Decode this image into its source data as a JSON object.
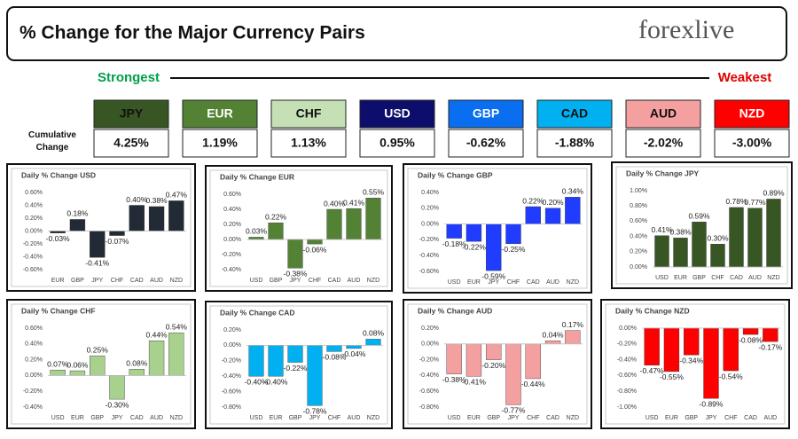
{
  "header": {
    "title": "% Change for the Major Currency Pairs",
    "logo": "forexlive"
  },
  "strength": {
    "strongest": "Strongest",
    "weakest": "Weakest",
    "row_label": "Cumulative Change",
    "tiles": [
      {
        "name": "JPY",
        "color": "#375623",
        "value": 4.25,
        "value_label": "4.25%"
      },
      {
        "name": "EUR",
        "color": "#548235",
        "value": 1.19,
        "value_label": "1.19%"
      },
      {
        "name": "CHF",
        "color": "#c5e0b4",
        "value": 1.13,
        "value_label": "1.13%"
      },
      {
        "name": "USD",
        "color": "#0d0d6b",
        "value": 0.95,
        "value_label": "0.95%"
      },
      {
        "name": "GBP",
        "color": "#0a6ef0",
        "value": -0.62,
        "value_label": "-0.62%"
      },
      {
        "name": "CAD",
        "color": "#00b0f0",
        "value": -1.88,
        "value_label": "-1.88%"
      },
      {
        "name": "AUD",
        "color": "#f4a0a0",
        "value": -2.02,
        "value_label": "-2.02%"
      },
      {
        "name": "NZD",
        "color": "#ff0000",
        "value": -3.0,
        "value_label": "-3.00%"
      }
    ]
  },
  "chart_data": [
    {
      "type": "bar",
      "title": "Daily % Change USD",
      "color": "#222a35",
      "categories": [
        "EUR",
        "GBP",
        "JPY",
        "CHF",
        "CAD",
        "AUD",
        "NZD"
      ],
      "values": [
        -0.03,
        0.18,
        -0.41,
        -0.07,
        0.4,
        0.38,
        0.47
      ],
      "value_labels": [
        "-0.03%",
        "0.18%",
        "-0.41%",
        "-0.07%",
        "0.40%",
        "0.38%",
        "0.47%"
      ],
      "ylim": [
        -0.6,
        0.6
      ],
      "yticks": [
        {
          "value": -0.6,
          "label": "-0.60%"
        },
        {
          "value": -0.4,
          "label": "-0.40%"
        },
        {
          "value": -0.2,
          "label": "-0.20%"
        },
        {
          "value": 0,
          "label": "0.00%"
        },
        {
          "value": 0.2,
          "label": "0.20%"
        },
        {
          "value": 0.4,
          "label": "0.40%"
        },
        {
          "value": 0.6,
          "label": "0.60%"
        }
      ]
    },
    {
      "type": "bar",
      "title": "Daily % Change EUR",
      "color": "#548235",
      "categories": [
        "USD",
        "GBP",
        "JPY",
        "CHF",
        "CAD",
        "AUD",
        "NZD"
      ],
      "values": [
        0.03,
        0.22,
        -0.38,
        -0.06,
        0.4,
        0.41,
        0.55
      ],
      "value_labels": [
        "0.03%",
        "0.22%",
        "-0.38%",
        "-0.06%",
        "0.40%",
        "0.41%",
        "0.55%"
      ],
      "ylim": [
        -0.4,
        0.6
      ],
      "yticks": [
        {
          "value": -0.4,
          "label": "-0.40%"
        },
        {
          "value": -0.2,
          "label": "-0.20%"
        },
        {
          "value": 0,
          "label": "0.00%"
        },
        {
          "value": 0.2,
          "label": "0.20%"
        },
        {
          "value": 0.4,
          "label": "0.40%"
        },
        {
          "value": 0.6,
          "label": "0.60%"
        }
      ]
    },
    {
      "type": "bar",
      "title": "Daily % Change GBP",
      "color": "#1f3cff",
      "categories": [
        "USD",
        "EUR",
        "JPY",
        "CHF",
        "CAD",
        "AUD",
        "NZD"
      ],
      "values": [
        -0.18,
        -0.22,
        -0.59,
        -0.25,
        0.22,
        0.2,
        0.34
      ],
      "value_labels": [
        "-0.18%",
        "-0.22%",
        "-0.59%",
        "-0.25%",
        "0.22%",
        "0.20%",
        "0.34%"
      ],
      "ylim": [
        -0.6,
        0.4
      ],
      "yticks": [
        {
          "value": -0.6,
          "label": "-0.60%"
        },
        {
          "value": -0.4,
          "label": "-0.40%"
        },
        {
          "value": -0.2,
          "label": "-0.20%"
        },
        {
          "value": 0,
          "label": "0.00%"
        },
        {
          "value": 0.2,
          "label": "0.20%"
        },
        {
          "value": 0.4,
          "label": "0.40%"
        }
      ]
    },
    {
      "type": "bar",
      "title": "Daily % Change JPY",
      "color": "#375623",
      "categories": [
        "USD",
        "EUR",
        "GBP",
        "CHF",
        "CAD",
        "AUD",
        "NZD"
      ],
      "values": [
        0.41,
        0.38,
        0.59,
        0.3,
        0.78,
        0.77,
        0.89
      ],
      "value_labels": [
        "0.41%",
        "0.38%",
        "0.59%",
        "0.30%",
        "0.78%",
        "0.77%",
        "0.89%"
      ],
      "ylim": [
        0,
        1
      ],
      "yticks": [
        {
          "value": 0,
          "label": "0.00%"
        },
        {
          "value": 0.2,
          "label": "0.20%"
        },
        {
          "value": 0.4,
          "label": "0.40%"
        },
        {
          "value": 0.6,
          "label": "0.60%"
        },
        {
          "value": 0.8,
          "label": "0.80%"
        },
        {
          "value": 1,
          "label": "1.00%"
        }
      ]
    },
    {
      "type": "bar",
      "title": "Daily % Change CHF",
      "color": "#a9d18e",
      "categories": [
        "USD",
        "EUR",
        "GBP",
        "JPY",
        "CAD",
        "AUD",
        "NZD"
      ],
      "values": [
        0.07,
        0.06,
        0.25,
        -0.3,
        0.08,
        0.44,
        0.54
      ],
      "value_labels": [
        "0.07%",
        "0.06%",
        "0.25%",
        "-0.30%",
        "0.08%",
        "0.44%",
        "0.54%"
      ],
      "ylim": [
        -0.4,
        0.6
      ],
      "yticks": [
        {
          "value": -0.4,
          "label": "-0.40%"
        },
        {
          "value": -0.2,
          "label": "-0.20%"
        },
        {
          "value": 0,
          "label": "0.00%"
        },
        {
          "value": 0.2,
          "label": "0.20%"
        },
        {
          "value": 0.4,
          "label": "0.40%"
        },
        {
          "value": 0.6,
          "label": "0.60%"
        }
      ]
    },
    {
      "type": "bar",
      "title": "Daily % Change CAD",
      "color": "#00b0f0",
      "categories": [
        "USD",
        "EUR",
        "GBP",
        "JPY",
        "CHF",
        "AUD",
        "NZD"
      ],
      "values": [
        -0.4,
        -0.4,
        -0.22,
        -0.78,
        -0.08,
        -0.04,
        0.08
      ],
      "value_labels": [
        "-0.40%",
        "-0.40%",
        "-0.22%",
        "-0.78%",
        "-0.08%",
        "-0.04%",
        "0.08%"
      ],
      "ylim": [
        -0.8,
        0.2
      ],
      "yticks": [
        {
          "value": -0.8,
          "label": "-0.80%"
        },
        {
          "value": -0.6,
          "label": "-0.60%"
        },
        {
          "value": -0.4,
          "label": "-0.40%"
        },
        {
          "value": -0.2,
          "label": "-0.20%"
        },
        {
          "value": 0,
          "label": "0.00%"
        },
        {
          "value": 0.2,
          "label": "0.20%"
        }
      ]
    },
    {
      "type": "bar",
      "title": "Daily % Change AUD",
      "color": "#f4a0a0",
      "categories": [
        "USD",
        "EUR",
        "GBP",
        "JPY",
        "CHF",
        "CAD",
        "NZD"
      ],
      "values": [
        -0.38,
        -0.41,
        -0.2,
        -0.77,
        -0.44,
        0.04,
        0.17
      ],
      "value_labels": [
        "-0.38%",
        "-0.41%",
        "-0.20%",
        "-0.77%",
        "-0.44%",
        "0.04%",
        "0.17%"
      ],
      "ylim": [
        -0.8,
        0.2
      ],
      "yticks": [
        {
          "value": -0.8,
          "label": "-0.80%"
        },
        {
          "value": -0.6,
          "label": "-0.60%"
        },
        {
          "value": -0.4,
          "label": "-0.40%"
        },
        {
          "value": -0.2,
          "label": "-0.20%"
        },
        {
          "value": 0,
          "label": "0.00%"
        },
        {
          "value": 0.2,
          "label": "0.20%"
        }
      ]
    },
    {
      "type": "bar",
      "title": "Daily % Change NZD",
      "color": "#ff0000",
      "categories": [
        "USD",
        "EUR",
        "GBP",
        "JPY",
        "CHF",
        "CAD",
        "AUD"
      ],
      "values": [
        -0.47,
        -0.55,
        -0.34,
        -0.89,
        -0.54,
        -0.08,
        -0.17
      ],
      "value_labels": [
        "-0.47%",
        "-0.55%",
        "-0.34%",
        "-0.89%",
        "-0.54%",
        "-0.08%",
        "-0.17%"
      ],
      "ylim": [
        -1,
        0
      ],
      "yticks": [
        {
          "value": -1,
          "label": "-1.00%"
        },
        {
          "value": -0.8,
          "label": "-0.80%"
        },
        {
          "value": -0.6,
          "label": "-0.60%"
        },
        {
          "value": -0.4,
          "label": "-0.40%"
        },
        {
          "value": -0.2,
          "label": "-0.20%"
        },
        {
          "value": 0,
          "label": "0.00%"
        }
      ]
    }
  ]
}
